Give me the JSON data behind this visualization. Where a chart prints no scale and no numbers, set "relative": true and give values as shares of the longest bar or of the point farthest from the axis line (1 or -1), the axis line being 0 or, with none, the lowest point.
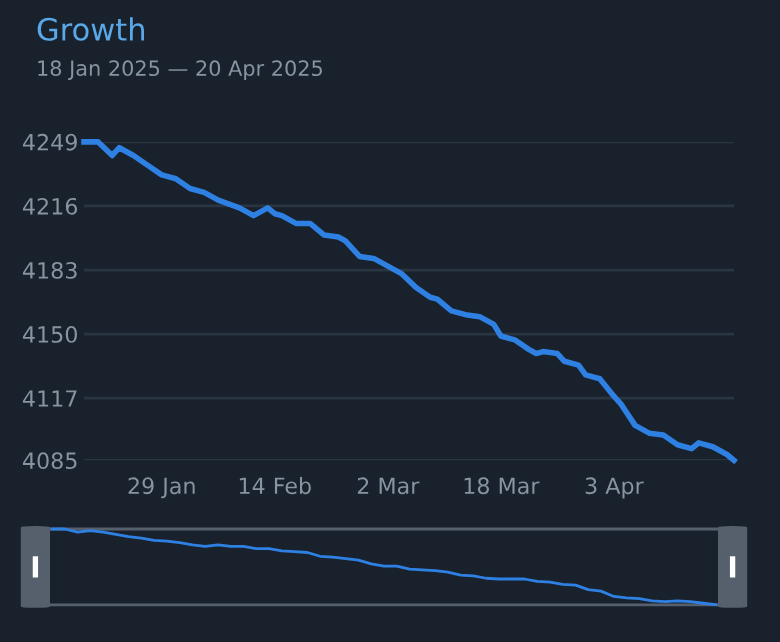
{
  "chart_data": [
    {
      "type": "line",
      "title": "Growth",
      "subtitle": "18 Jan 2025 — 20 Apr 2025",
      "x": [
        "2025-01-18",
        "2025-01-20",
        "2025-01-22",
        "2025-01-23",
        "2025-01-25",
        "2025-01-27",
        "2025-01-29",
        "2025-01-31",
        "2025-02-02",
        "2025-02-04",
        "2025-02-06",
        "2025-02-09",
        "2025-02-11",
        "2025-02-13",
        "2025-02-14",
        "2025-02-15",
        "2025-02-17",
        "2025-02-19",
        "2025-02-21",
        "2025-02-23",
        "2025-02-24",
        "2025-02-26",
        "2025-02-28",
        "2025-03-02",
        "2025-03-04",
        "2025-03-06",
        "2025-03-08",
        "2025-03-09",
        "2025-03-11",
        "2025-03-13",
        "2025-03-15",
        "2025-03-17",
        "2025-03-18",
        "2025-03-20",
        "2025-03-22",
        "2025-03-23",
        "2025-03-24",
        "2025-03-26",
        "2025-03-27",
        "2025-03-29",
        "2025-03-30",
        "2025-04-01",
        "2025-04-03",
        "2025-04-04",
        "2025-04-06",
        "2025-04-08",
        "2025-04-10",
        "2025-04-12",
        "2025-04-14",
        "2025-04-15",
        "2025-04-17",
        "2025-04-19",
        "2025-04-20"
      ],
      "series": [
        {
          "color": "#2f80e3",
          "values": [
            4249,
            4249,
            4242,
            4246,
            4242,
            4237,
            4232,
            4230,
            4225,
            4223,
            4219,
            4215,
            4211,
            4215,
            4212,
            4211,
            4207,
            4207,
            4201,
            4200,
            4198,
            4190,
            4189,
            4185,
            4181,
            4174,
            4169,
            4168,
            4162,
            4160,
            4159,
            4155,
            4149,
            4147,
            4142,
            4140,
            4141,
            4140,
            4136,
            4134,
            4129,
            4127,
            4118,
            4114,
            4103,
            4099,
            4098,
            4093,
            4091,
            4094,
            4092,
            4088,
            4085
          ]
        }
      ],
      "xlim": [
        "2025-01-18",
        "2025-04-20"
      ],
      "xticks": [
        {
          "value": "2025-01-29",
          "label": "29 Jan"
        },
        {
          "value": "2025-02-14",
          "label": "14 Feb"
        },
        {
          "value": "2025-03-02",
          "label": "2 Mar"
        },
        {
          "value": "2025-03-18",
          "label": "18 Mar"
        },
        {
          "value": "2025-04-03",
          "label": "3 Apr"
        }
      ],
      "ylim": [
        4085,
        4249
      ],
      "yticks": [
        4249,
        4216,
        4183,
        4150,
        4117,
        4085
      ],
      "grid": "y",
      "legend": false,
      "marker": "none",
      "line_style": "solid"
    },
    {
      "type": "line",
      "relative": true,
      "categories": [
        null,
        null,
        null,
        null,
        null,
        null,
        null,
        null,
        null,
        null,
        null,
        null,
        null,
        null,
        null,
        null,
        null,
        null,
        null,
        null,
        null,
        null,
        null,
        null,
        null,
        null,
        null,
        null,
        null,
        null,
        null,
        null,
        null,
        null,
        null,
        null,
        null,
        null,
        null,
        null,
        null,
        null,
        null,
        null,
        null,
        null,
        null,
        null,
        null,
        null,
        null,
        null,
        null
      ],
      "series": [
        {
          "color": "#2f80e3",
          "values": [
            1,
            1,
            0.96,
            0.98,
            0.96,
            0.93,
            0.9,
            0.88,
            0.85,
            0.84,
            0.82,
            0.79,
            0.77,
            0.79,
            0.77,
            0.77,
            0.74,
            0.74,
            0.71,
            0.7,
            0.69,
            0.64,
            0.63,
            0.61,
            0.59,
            0.54,
            0.51,
            0.51,
            0.47,
            0.46,
            0.45,
            0.43,
            0.39,
            0.38,
            0.35,
            0.34,
            0.34,
            0.34,
            0.31,
            0.3,
            0.27,
            0.26,
            0.2,
            0.18,
            0.11,
            0.09,
            0.08,
            0.05,
            0.04,
            0.05,
            0.04,
            0.02,
            0
          ]
        }
      ],
      "grid": false,
      "legend": false,
      "marker": "none",
      "line_style": "solid"
    }
  ]
}
